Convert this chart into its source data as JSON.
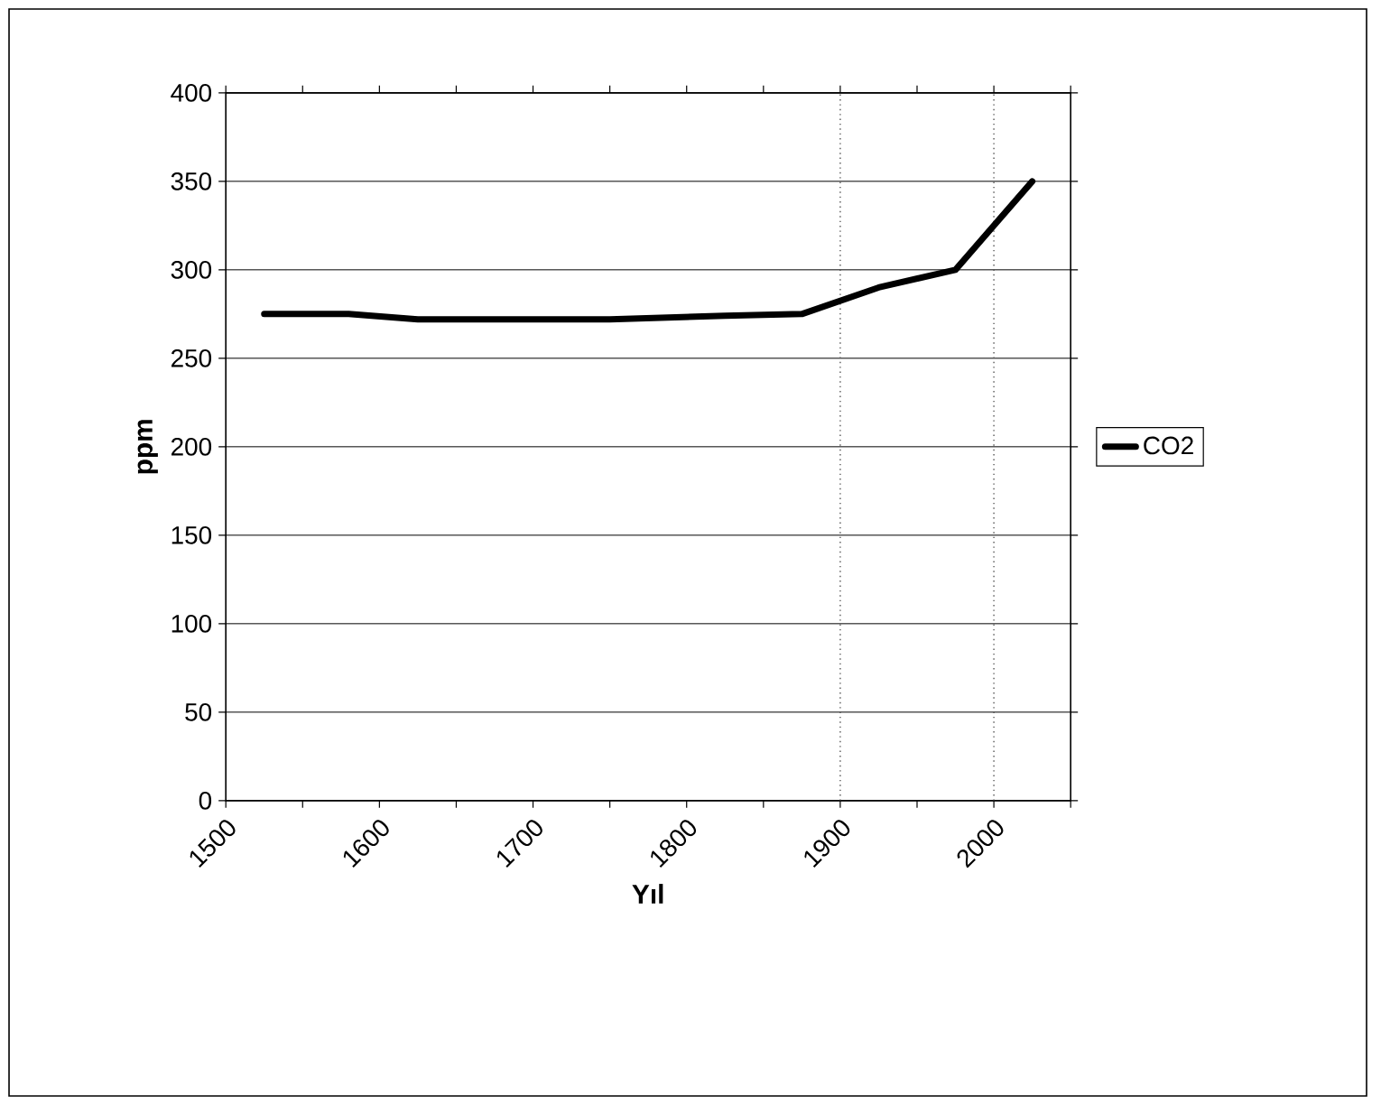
{
  "chart_data": {
    "type": "line",
    "xlabel": "Yıl",
    "ylabel": "ppm",
    "x": [
      1525,
      1580,
      1625,
      1750,
      1825,
      1875,
      1925,
      1975,
      2025
    ],
    "series": [
      {
        "name": "CO2",
        "color": "#000000",
        "values": [
          275,
          275,
          272,
          272,
          274,
          275,
          290,
          300,
          350
        ]
      }
    ],
    "xlim": [
      1500,
      2050
    ],
    "xticks": [
      1500,
      {
        "value": 1550,
        "label": null
      },
      1600,
      {
        "value": 1650,
        "label": null
      },
      1700,
      {
        "value": 1750,
        "label": null
      },
      1800,
      {
        "value": 1850,
        "label": null
      },
      1900,
      {
        "value": 1950,
        "label": null
      },
      2000,
      {
        "value": 2050,
        "label": null
      }
    ],
    "ylim": [
      0,
      400
    ],
    "yticks": [
      0,
      50,
      100,
      150,
      200,
      250,
      300,
      350,
      400
    ],
    "ref_lines": [
      {
        "axis": "x",
        "value": 1900,
        "line_style": "dotted",
        "color": "#555555"
      },
      {
        "axis": "x",
        "value": 2000,
        "line_style": "dotted",
        "color": "#555555"
      }
    ],
    "grid": "y",
    "legend": "right",
    "marker": "none",
    "line_style": "solid"
  }
}
